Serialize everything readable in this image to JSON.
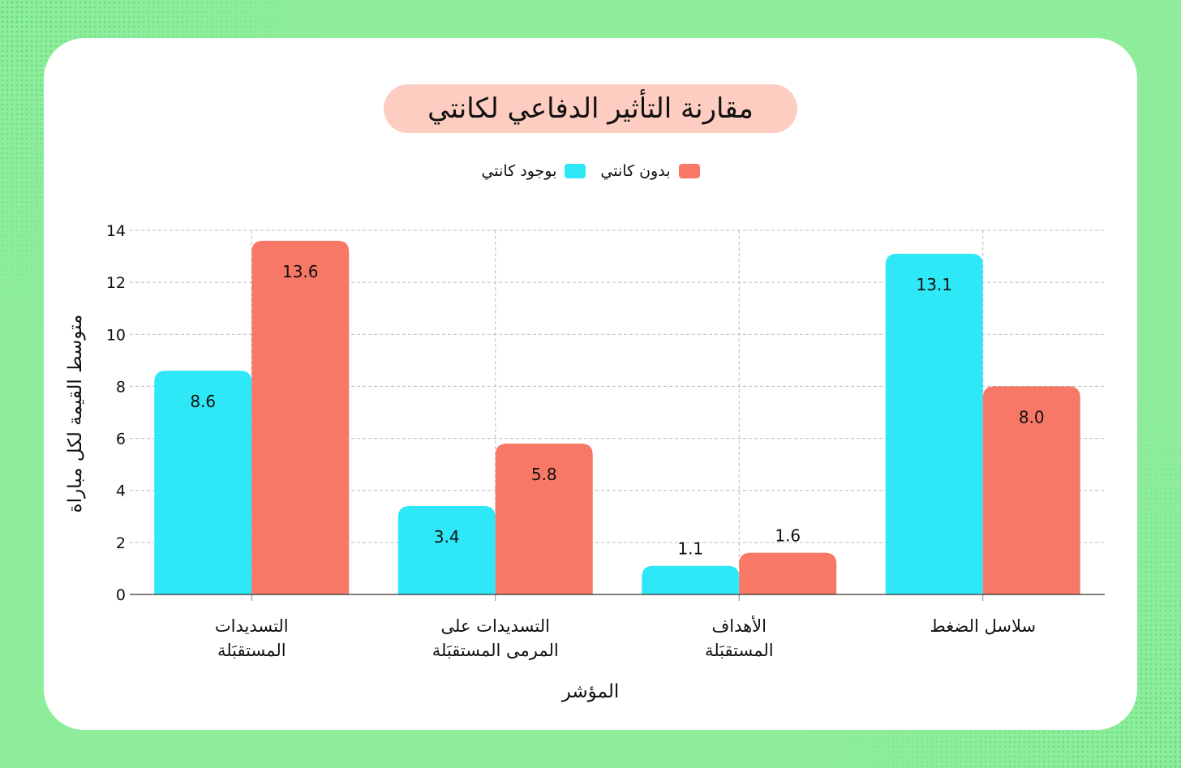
{
  "chart_data": {
    "type": "bar",
    "title": "مقارنة التأثير الدفاعي لكانتي",
    "xlabel": "المؤشر",
    "ylabel": "متوسط القيمة لكل مباراة",
    "ylim": [
      0,
      14
    ],
    "yticks": [
      0,
      2,
      4,
      6,
      8,
      10,
      12,
      14
    ],
    "grid": true,
    "legend_position": "top-center",
    "categories": [
      [
        "التسديدات",
        "المستقبَلة"
      ],
      [
        "التسديدات على",
        "المرمى المستقبَلة"
      ],
      [
        "الأهداف",
        "المستقبَلة"
      ],
      [
        "سلاسل الضغط"
      ]
    ],
    "series": [
      {
        "name": "بوجود كانتي",
        "color": "#2ee8f7",
        "values": [
          8.6,
          3.4,
          1.1,
          13.1
        ],
        "labels": [
          "8.6",
          "3.4",
          "1.1",
          "13.1"
        ]
      },
      {
        "name": "بدون كانتي",
        "color": "#f77866",
        "values": [
          13.6,
          5.8,
          1.6,
          8.0
        ],
        "labels": [
          "13.6",
          "5.8",
          "1.6",
          "8.0"
        ]
      }
    ]
  }
}
